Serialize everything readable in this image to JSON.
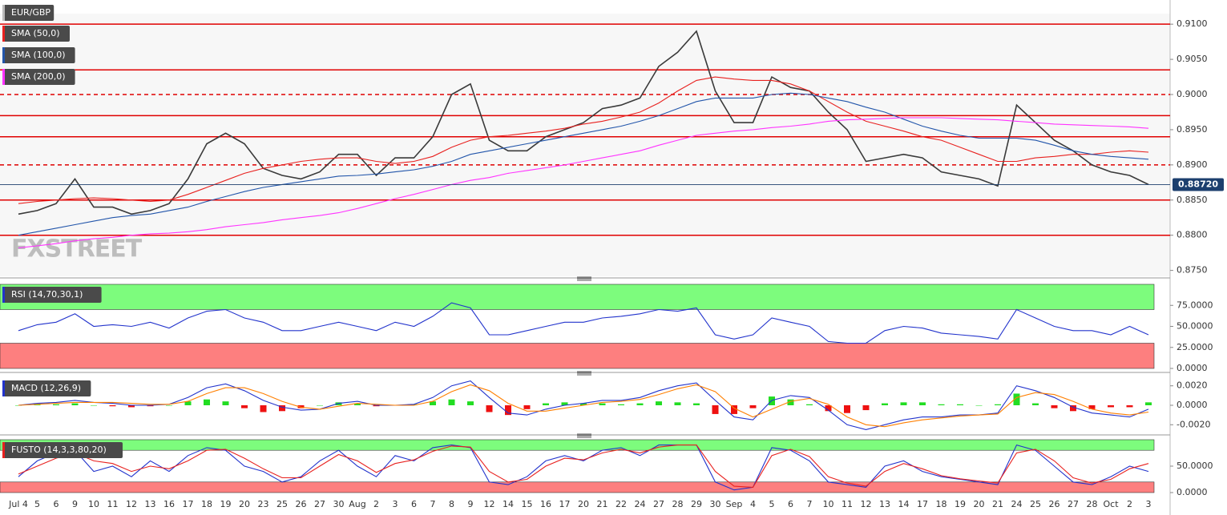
{
  "watermark": "FXSTREET",
  "chart_data": [
    {
      "type": "line",
      "categories": [
        "Jul 4",
        "5",
        "6",
        "9",
        "10",
        "11",
        "12",
        "13",
        "16",
        "17",
        "18",
        "19",
        "20",
        "23",
        "25",
        "26",
        "27",
        "30",
        "Aug",
        "2",
        "3",
        "6",
        "7",
        "8",
        "9",
        "12",
        "14",
        "15",
        "16",
        "17",
        "20",
        "21",
        "22",
        "24",
        "27",
        "28",
        "29",
        "30",
        "Sep",
        "4",
        "5",
        "6",
        "7",
        "10",
        "11",
        "12",
        "13",
        "14",
        "17",
        "18",
        "19",
        "20",
        "21",
        "24",
        "25",
        "26",
        "27",
        "28",
        "Oct",
        "2",
        "3"
      ],
      "series": [
        {
          "name": "EUR/GBP",
          "color": "#3a3a3a",
          "values": [
            0.883,
            0.8835,
            0.8845,
            0.888,
            0.884,
            0.884,
            0.883,
            0.8835,
            0.8845,
            0.888,
            0.893,
            0.8945,
            0.893,
            0.8895,
            0.8885,
            0.888,
            0.889,
            0.8915,
            0.8915,
            0.8885,
            0.891,
            0.891,
            0.894,
            0.9,
            0.9015,
            0.8935,
            0.892,
            0.892,
            0.894,
            0.895,
            0.896,
            0.898,
            0.8985,
            0.8995,
            0.904,
            0.906,
            0.909,
            0.9005,
            0.896,
            0.896,
            0.9025,
            0.901,
            0.9005,
            0.8975,
            0.895,
            0.8905,
            0.891,
            0.8915,
            0.891,
            0.889,
            0.8885,
            0.888,
            0.887,
            0.8985,
            0.896,
            0.8935,
            0.892,
            0.89,
            0.889,
            0.8885,
            0.8872
          ]
        },
        {
          "name": "SMA (50,0)",
          "color": "#e8211f",
          "values": [
            0.8845,
            0.8848,
            0.885,
            0.8852,
            0.8853,
            0.8852,
            0.885,
            0.8848,
            0.885,
            0.8858,
            0.8868,
            0.8878,
            0.8888,
            0.8895,
            0.89,
            0.8905,
            0.8908,
            0.891,
            0.891,
            0.8905,
            0.8902,
            0.8905,
            0.8912,
            0.8925,
            0.8935,
            0.894,
            0.8942,
            0.8945,
            0.8948,
            0.8952,
            0.8958,
            0.8962,
            0.8968,
            0.8975,
            0.8988,
            0.9005,
            0.902,
            0.9025,
            0.9022,
            0.902,
            0.902,
            0.9015,
            0.9005,
            0.899,
            0.8975,
            0.8962,
            0.8955,
            0.8948,
            0.894,
            0.8935,
            0.8925,
            0.8915,
            0.8905,
            0.8905,
            0.891,
            0.8912,
            0.8915,
            0.8915,
            0.8918,
            0.892,
            0.8918
          ]
        },
        {
          "name": "SMA (100,0)",
          "color": "#2255aa",
          "values": [
            0.88,
            0.8805,
            0.881,
            0.8815,
            0.882,
            0.8825,
            0.8828,
            0.883,
            0.8835,
            0.884,
            0.8848,
            0.8855,
            0.8862,
            0.8868,
            0.8872,
            0.8876,
            0.888,
            0.8884,
            0.8885,
            0.8887,
            0.889,
            0.8893,
            0.8898,
            0.8905,
            0.8915,
            0.892,
            0.8925,
            0.893,
            0.8935,
            0.894,
            0.8945,
            0.895,
            0.8955,
            0.8962,
            0.897,
            0.898,
            0.899,
            0.8995,
            0.8995,
            0.8995,
            0.9,
            0.9002,
            0.9,
            0.8995,
            0.899,
            0.8982,
            0.8975,
            0.8965,
            0.8955,
            0.8948,
            0.8942,
            0.8938,
            0.8938,
            0.8938,
            0.8935,
            0.8928,
            0.892,
            0.8915,
            0.8912,
            0.891,
            0.8908
          ]
        },
        {
          "name": "SMA (200,0)",
          "color": "#ff33ff",
          "values": [
            0.8782,
            0.8785,
            0.8788,
            0.8792,
            0.8795,
            0.8797,
            0.88,
            0.8802,
            0.8803,
            0.8805,
            0.8808,
            0.8812,
            0.8815,
            0.8818,
            0.8822,
            0.8825,
            0.8828,
            0.8832,
            0.8838,
            0.8845,
            0.8852,
            0.8858,
            0.8865,
            0.8872,
            0.8878,
            0.8882,
            0.8888,
            0.8892,
            0.8896,
            0.89,
            0.8905,
            0.891,
            0.8915,
            0.892,
            0.8928,
            0.8935,
            0.8942,
            0.8945,
            0.8948,
            0.895,
            0.8953,
            0.8955,
            0.8958,
            0.8962,
            0.8964,
            0.8965,
            0.8966,
            0.8967,
            0.8967,
            0.8967,
            0.8966,
            0.8965,
            0.8964,
            0.8962,
            0.896,
            0.8958,
            0.8957,
            0.8956,
            0.8955,
            0.8954,
            0.8952
          ]
        }
      ],
      "ylim": [
        0.8745,
        0.9115
      ],
      "yticks": [
        {
          "value": 0.875,
          "label": "0.8750"
        },
        {
          "value": 0.88,
          "label": "0.8800"
        },
        {
          "value": 0.885,
          "label": "0.8850"
        },
        {
          "value": 0.89,
          "label": "0.8900"
        },
        {
          "value": 0.895,
          "label": "0.8950"
        },
        {
          "value": 0.9,
          "label": "0.9000"
        },
        {
          "value": 0.905,
          "label": "0.9050"
        },
        {
          "value": 0.91,
          "label": "0.9100"
        }
      ],
      "level_color": "#e00000",
      "levels": [
        {
          "value": 0.91,
          "style": "solid"
        },
        {
          "value": 0.9035,
          "style": "solid"
        },
        {
          "value": 0.9,
          "style": "dashed"
        },
        {
          "value": 0.897,
          "style": "solid"
        },
        {
          "value": 0.894,
          "style": "solid"
        },
        {
          "value": 0.89,
          "style": "dashed"
        },
        {
          "value": 0.885,
          "style": "solid"
        },
        {
          "value": 0.88,
          "style": "solid"
        }
      ],
      "price_marker": {
        "value": 0.8872,
        "label": "0.88720",
        "color": "#1c3f6e"
      }
    },
    {
      "type": "line",
      "title": "RSI (14,70,30,1)",
      "series": [
        {
          "color": "#2233cc",
          "values": [
            45,
            52,
            55,
            65,
            50,
            52,
            50,
            55,
            48,
            60,
            68,
            70,
            60,
            55,
            45,
            45,
            50,
            55,
            50,
            45,
            55,
            50,
            62,
            78,
            72,
            40,
            40,
            45,
            50,
            55,
            55,
            60,
            62,
            65,
            70,
            68,
            72,
            40,
            35,
            40,
            60,
            55,
            50,
            32,
            30,
            30,
            45,
            50,
            48,
            42,
            40,
            38,
            35,
            70,
            60,
            50,
            45,
            45,
            40,
            50,
            40
          ]
        }
      ],
      "ylim": [
        0,
        100
      ],
      "yticks": [
        {
          "value": 0,
          "label": "0.0000"
        },
        {
          "value": 25,
          "label": "25.0000"
        },
        {
          "value": 50,
          "label": "50.0000"
        },
        {
          "value": 75,
          "label": "75.0000"
        }
      ],
      "bands": [
        {
          "from": 70,
          "to": 100,
          "color": "#7dfc7d"
        },
        {
          "from": 0,
          "to": 30,
          "color": "#fd7f7f"
        }
      ]
    },
    {
      "type": "line",
      "title": "MACD (12,26,9)",
      "series": [
        {
          "type": "bar",
          "color": "#22dd22",
          "negative_color": "#ee1111",
          "values": [
            0.0,
            0.0001,
            0.0001,
            0.0002,
            0.0,
            -0.0001,
            -0.0002,
            -0.0001,
            0.0,
            0.0004,
            0.0006,
            0.0004,
            -0.0003,
            -0.0007,
            -0.0006,
            -0.0003,
            0.0,
            0.0003,
            0.0002,
            -0.0001,
            0.0,
            0.0001,
            0.0004,
            0.0006,
            0.0004,
            -0.0007,
            -0.001,
            -0.0004,
            0.0002,
            0.0003,
            0.0002,
            0.0002,
            0.0001,
            0.0002,
            0.0004,
            0.0003,
            0.0002,
            -0.0009,
            -0.0009,
            -0.0003,
            0.0009,
            0.0006,
            0.0001,
            -0.0006,
            -0.0008,
            -0.0005,
            0.0002,
            0.0003,
            0.0003,
            0.0001,
            0.0001,
            0.0,
            0.0001,
            0.0012,
            0.0002,
            -0.0003,
            -0.0006,
            -0.0004,
            -0.0002,
            -0.0002,
            0.0003
          ]
        },
        {
          "color": "#2233cc",
          "values": [
            0.0,
            0.0002,
            0.0003,
            0.0005,
            0.0003,
            0.0002,
            0.0,
            0.0,
            0.0001,
            0.0008,
            0.0018,
            0.0022,
            0.0015,
            0.0005,
            -0.0002,
            -0.0005,
            -0.0004,
            0.0002,
            0.0004,
            0.0,
            0.0,
            0.0001,
            0.0008,
            0.002,
            0.0025,
            0.0008,
            -0.0008,
            -0.001,
            -0.0004,
            0.0,
            0.0002,
            0.0005,
            0.0005,
            0.0008,
            0.0015,
            0.002,
            0.0023,
            0.0005,
            -0.0012,
            -0.0015,
            0.0005,
            0.001,
            0.0008,
            -0.0005,
            -0.002,
            -0.0025,
            -0.002,
            -0.0015,
            -0.0012,
            -0.0012,
            -0.001,
            -0.001,
            -0.0008,
            0.002,
            0.0015,
            0.0008,
            -0.0002,
            -0.0008,
            -0.001,
            -0.0012,
            -0.0004
          ]
        },
        {
          "color": "#ff7f00",
          "values": [
            0.0,
            0.0001,
            0.0002,
            0.0003,
            0.0003,
            0.0003,
            0.0002,
            0.0001,
            0.0001,
            0.0004,
            0.0012,
            0.0018,
            0.0018,
            0.0012,
            0.0004,
            -0.0002,
            -0.0004,
            -0.0001,
            0.0002,
            0.0001,
            0.0,
            0.0,
            0.0004,
            0.0014,
            0.0021,
            0.0015,
            0.0002,
            -0.0006,
            -0.0006,
            -0.0003,
            0.0,
            0.0003,
            0.0004,
            0.0006,
            0.0011,
            0.0017,
            0.0021,
            0.0014,
            -0.0003,
            -0.0012,
            -0.0004,
            0.0004,
            0.0007,
            0.0001,
            -0.0012,
            -0.002,
            -0.0022,
            -0.0018,
            -0.0015,
            -0.0013,
            -0.0011,
            -0.001,
            -0.0009,
            0.0008,
            0.0013,
            0.0011,
            0.0004,
            -0.0004,
            -0.0008,
            -0.001,
            -0.0007
          ]
        }
      ],
      "ylim": [
        -0.0028,
        0.0028
      ],
      "yticks": [
        {
          "value": -0.002,
          "label": "-0.0020"
        },
        {
          "value": 0,
          "label": "0.0000"
        },
        {
          "value": 0.002,
          "label": "0.0020"
        }
      ]
    },
    {
      "type": "line",
      "title": "FUSTO (14,3,3,80,20)",
      "series": [
        {
          "color": "#2233cc",
          "values": [
            30,
            60,
            75,
            80,
            40,
            50,
            30,
            60,
            40,
            70,
            85,
            80,
            50,
            40,
            20,
            30,
            60,
            80,
            50,
            30,
            70,
            60,
            85,
            90,
            85,
            20,
            15,
            30,
            60,
            70,
            60,
            80,
            85,
            70,
            90,
            90,
            90,
            20,
            5,
            10,
            85,
            80,
            60,
            20,
            15,
            10,
            50,
            60,
            40,
            30,
            25,
            20,
            15,
            90,
            80,
            50,
            20,
            15,
            30,
            50,
            40
          ]
        },
        {
          "color": "#e8211f",
          "values": [
            35,
            50,
            65,
            75,
            60,
            55,
            40,
            50,
            45,
            60,
            80,
            82,
            65,
            45,
            28,
            28,
            50,
            72,
            60,
            38,
            55,
            62,
            78,
            88,
            86,
            40,
            20,
            25,
            50,
            65,
            62,
            75,
            82,
            75,
            86,
            90,
            90,
            40,
            12,
            10,
            70,
            82,
            68,
            30,
            18,
            12,
            40,
            55,
            45,
            32,
            26,
            22,
            18,
            75,
            82,
            60,
            28,
            18,
            25,
            45,
            55
          ]
        }
      ],
      "ylim": [
        0,
        100
      ],
      "yticks": [
        {
          "value": 0,
          "label": "0.0000"
        },
        {
          "value": 50,
          "label": "50.0000"
        }
      ],
      "bands": [
        {
          "from": 80,
          "to": 100,
          "color": "#7dfc7d"
        },
        {
          "from": 0,
          "to": 20,
          "color": "#fd7f7f"
        }
      ]
    }
  ]
}
